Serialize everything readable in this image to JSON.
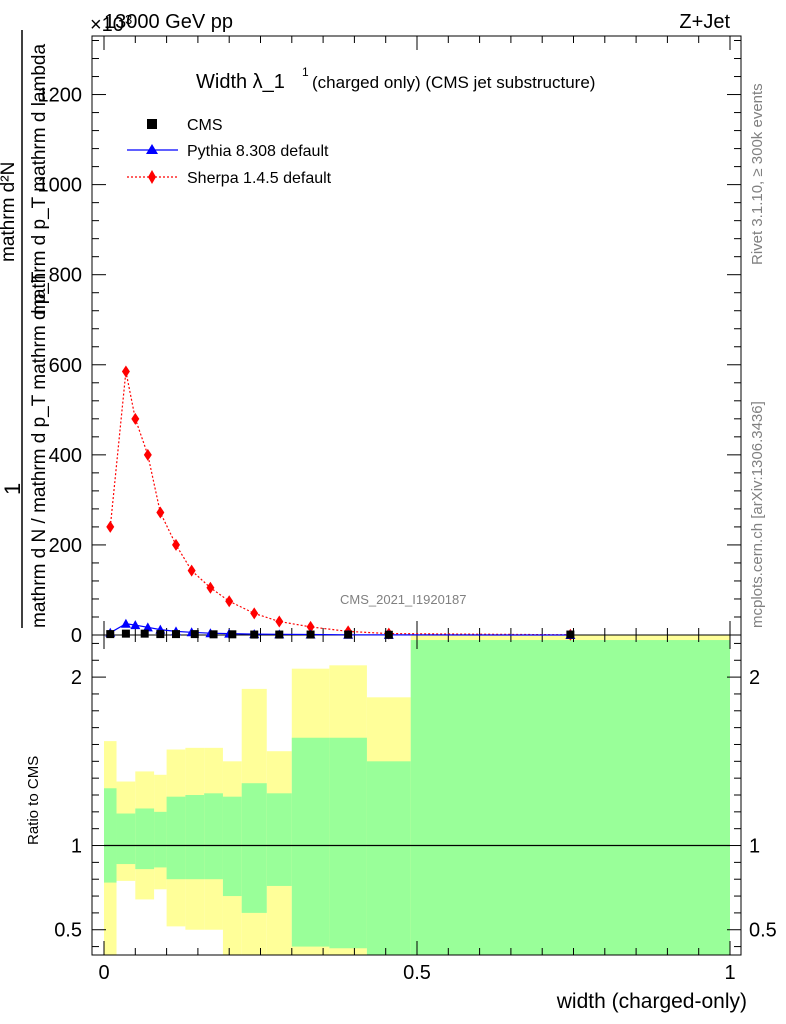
{
  "header": {
    "left_label": "13000 GeV pp",
    "exponent_label": "×10",
    "exponent_power": "3",
    "right_label": "Z+Jet"
  },
  "side_labels": {
    "rivet": "Rivet 3.1.10, ≥ 300k events",
    "mcplots": "mcplots.cern.ch [arXiv:1306.3436]"
  },
  "plot_title": {
    "main": "Width λ_1",
    "superscript": "1",
    "suffix": "(charged only) (CMS jet substructure)"
  },
  "watermark": "CMS_2021_I1920187",
  "legend": [
    {
      "label": "CMS",
      "color": "#000000",
      "marker": "square"
    },
    {
      "label": "Pythia 8.308 default",
      "color": "#0000ff",
      "marker": "triangle"
    },
    {
      "label": "Sherpa 1.4.5 default",
      "color": "#ff0000",
      "marker": "diamond"
    }
  ],
  "y_axis_label": {
    "frac_one": "1",
    "denominator": "mathrm d N / mathrm d p_T mathrm d p_T",
    "numerator": "mathrm d²N",
    "numerator_line2": "mathrm d p_T mathrm d lambda"
  },
  "ratio_axis_label": "Ratio to CMS",
  "x_axis_label": "width (charged-only)",
  "chart_data": {
    "type": "line",
    "title": "Width λ_1^1 (charged only) (CMS jet substructure)",
    "xlabel": "width (charged-only)",
    "ylabel": "1/(dN/dp_T) d²N/(dp_T dλ)",
    "xlim": [
      0,
      1
    ],
    "ylim": [
      0,
      1330
    ],
    "y_scale_note": "×10^3",
    "y_ticks": [
      0,
      200,
      400,
      600,
      800,
      1000,
      1200
    ],
    "y_tick_labels": [
      "0",
      "200",
      "400",
      "600",
      "800",
      "1000",
      "1200"
    ],
    "x_ticks": [
      0,
      0.5,
      1
    ],
    "x_tick_labels": [
      "0",
      "0.5",
      "1"
    ],
    "bins": [
      0,
      0.02,
      0.05,
      0.08,
      0.1,
      0.13,
      0.16,
      0.19,
      0.22,
      0.26,
      0.3,
      0.36,
      0.42,
      0.49,
      1.0
    ],
    "series": [
      {
        "name": "CMS",
        "x": [
          0.01,
          0.035,
          0.065,
          0.09,
          0.115,
          0.145,
          0.175,
          0.205,
          0.24,
          0.28,
          0.33,
          0.39,
          0.455,
          0.745
        ],
        "values": [
          2,
          3,
          3,
          2,
          2,
          2,
          1.5,
          1.5,
          1,
          1,
          1,
          1,
          0.5,
          1
        ]
      },
      {
        "name": "Pythia 8.308 default",
        "x": [
          0.01,
          0.035,
          0.05,
          0.07,
          0.09,
          0.115,
          0.14,
          0.17,
          0.2,
          0.24,
          0.28,
          0.33,
          0.39,
          0.455,
          0.745
        ],
        "values": [
          5,
          25,
          22,
          17,
          12,
          8,
          6,
          4,
          3,
          2,
          1.5,
          1,
          0.5,
          0.3,
          0.1
        ]
      },
      {
        "name": "Sherpa 1.4.5 default",
        "x": [
          0.01,
          0.035,
          0.05,
          0.07,
          0.09,
          0.115,
          0.14,
          0.17,
          0.2,
          0.24,
          0.28,
          0.33,
          0.39,
          0.455,
          0.745
        ],
        "values": [
          240,
          585,
          480,
          400,
          272,
          200,
          143,
          105,
          75,
          48,
          30,
          18,
          8,
          3,
          0.5
        ]
      }
    ],
    "ratio": {
      "ylabel": "Ratio to CMS",
      "ylim": [
        0.35,
        2.25
      ],
      "y_ticks": [
        0.5,
        1,
        2
      ],
      "y_tick_labels": [
        "0.5",
        "1",
        "2"
      ],
      "reference": 1,
      "green_band": {
        "lower": [
          0.78,
          0.89,
          0.86,
          0.87,
          0.8,
          0.8,
          0.8,
          0.7,
          0.6,
          0.76,
          0.4,
          0.39,
          0.35,
          0.35
        ],
        "upper": [
          1.34,
          1.19,
          1.22,
          1.2,
          1.29,
          1.3,
          1.31,
          1.29,
          1.37,
          1.31,
          1.64,
          1.64,
          1.5,
          2.22
        ]
      },
      "yellow_band": {
        "lower": [
          0.35,
          0.79,
          0.68,
          0.74,
          0.52,
          0.5,
          0.5,
          0.35,
          0.35,
          0.35,
          0.35,
          0.35,
          0.35,
          0.35
        ],
        "upper": [
          1.62,
          1.38,
          1.44,
          1.42,
          1.57,
          1.58,
          1.58,
          1.5,
          1.93,
          1.56,
          2.05,
          2.07,
          1.88,
          2.25
        ]
      },
      "green_color": "#99ff99",
      "yellow_color": "#ffff99"
    },
    "colors": {
      "cms": "#000000",
      "pythia": "#0000ff",
      "sherpa": "#ff0000"
    }
  }
}
